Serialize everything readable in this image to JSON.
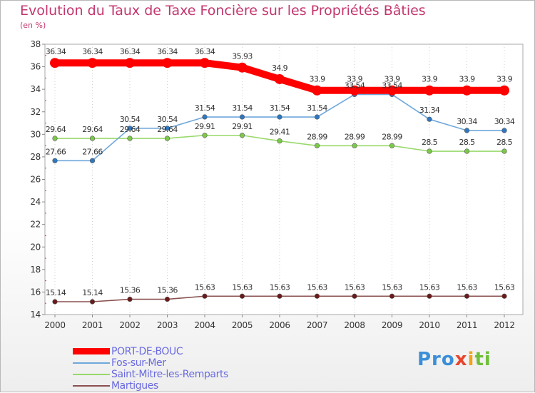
{
  "title": "Evolution du Taux de Taxe Foncière sur les Propriétés Bâties",
  "subtitle": "(en %)",
  "logo": {
    "p1": "Pro",
    "p2": "x",
    "p3": "i",
    "p4": "ti"
  },
  "chart_data": {
    "type": "line",
    "title": "Evolution du Taux de Taxe Foncière sur les Propriétés Bâties",
    "ylabel": "(en %)",
    "xlabel": "",
    "ylim": [
      14,
      38
    ],
    "yticks": [
      14,
      16,
      18,
      20,
      22,
      24,
      26,
      28,
      30,
      32,
      34,
      36,
      38
    ],
    "grid": "vertical dotted",
    "legend_position": "bottom-left",
    "x": [
      "2000",
      "2001",
      "2002",
      "2003",
      "2004",
      "2005",
      "2006",
      "2007",
      "2008",
      "2009",
      "2010",
      "2011",
      "2012"
    ],
    "series": [
      {
        "name": "PORT-DE-BOUC",
        "color": "#ff0000",
        "values": [
          36.34,
          36.34,
          36.34,
          36.34,
          36.34,
          35.93,
          34.9,
          33.9,
          33.9,
          33.9,
          33.9,
          33.9,
          33.9
        ],
        "labels": [
          "36.34",
          "36.34",
          "36.34",
          "36.34",
          "36.34",
          "35.93",
          "34.9",
          "33.9",
          "33.9",
          "33.9",
          "33.9",
          "33.9",
          "33.9"
        ]
      },
      {
        "name": "Fos-sur-Mer",
        "color": "#6fa8dc",
        "marker": "#2e78c2",
        "values": [
          27.66,
          27.66,
          30.54,
          30.54,
          31.54,
          31.54,
          31.54,
          31.54,
          33.54,
          33.54,
          31.34,
          30.34,
          30.34
        ],
        "labels": [
          "27.66",
          "27.66",
          "30.54",
          "30.54",
          "31.54",
          "31.54",
          "31.54",
          "31.54",
          "33.54",
          "33.54",
          "31.34",
          "30.34",
          "30.34"
        ]
      },
      {
        "name": "Saint-Mitre-les-Remparts",
        "color": "#99d96b",
        "marker": "#7cc94a",
        "values": [
          29.64,
          29.64,
          29.64,
          29.64,
          29.91,
          29.91,
          29.41,
          28.99,
          28.99,
          28.99,
          28.5,
          28.5,
          28.5
        ],
        "labels": [
          "29.64",
          "29.64",
          "29.64",
          "29.64",
          "29.91",
          "29.91",
          "29.41",
          "28.99",
          "28.99",
          "28.99",
          "28.5",
          "28.5",
          "28.5"
        ]
      },
      {
        "name": "Martigues",
        "color": "#8b5050",
        "marker": "#6b1a1a",
        "values": [
          15.14,
          15.14,
          15.36,
          15.36,
          15.63,
          15.63,
          15.63,
          15.63,
          15.63,
          15.63,
          15.63,
          15.63,
          15.63
        ],
        "labels": [
          "15.14",
          "15.14",
          "15.36",
          "15.36",
          "15.63",
          "15.63",
          "15.63",
          "15.63",
          "15.63",
          "15.63",
          "15.63",
          "15.63",
          "15.63"
        ]
      }
    ]
  },
  "legend": [
    {
      "label": "PORT-DE-BOUC",
      "color": "#ff0000",
      "text_color": "#6a6ae0"
    },
    {
      "label": "Fos-sur-Mer",
      "color": "#6fa8dc",
      "text_color": "#6a6ae0"
    },
    {
      "label": "Saint-Mitre-les-Remparts",
      "color": "#99d96b",
      "text_color": "#6a6ae0"
    },
    {
      "label": "Martigues",
      "color": "#8b5050",
      "text_color": "#6a6ae0"
    }
  ]
}
